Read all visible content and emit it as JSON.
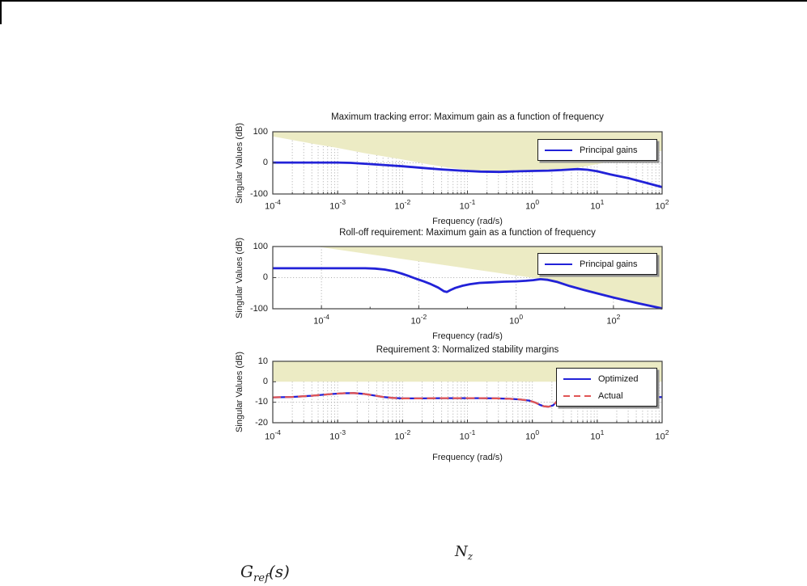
{
  "equations": {
    "nz": {
      "base": "N",
      "sub": "z"
    },
    "gref": {
      "base": "G",
      "sub": "ref",
      "suffix": "(s)"
    }
  },
  "chart_data": [
    {
      "id": "tracking-error",
      "type": "line",
      "title": "Maximum tracking error: Maximum gain as a function of frequency",
      "xlabel": "Frequency (rad/s)",
      "ylabel": "Singular Values (dB)",
      "x_scale": "log",
      "x_range_log10": [
        -4,
        2
      ],
      "y_range": [
        -100,
        100
      ],
      "x_tick_base": "10",
      "x_tick_exps": [
        -4,
        -3,
        -2,
        -1,
        0,
        1,
        2
      ],
      "y_ticks": [
        100,
        0,
        -100
      ],
      "h_gridlines": [
        0
      ],
      "minor_v_grid": true,
      "v_grid_exps": [],
      "legend_position": "upper-right",
      "constraint_color": "#ecebc4",
      "constraint_boundary_above": [
        [
          -4,
          85
        ],
        [
          -3.4,
          62
        ],
        [
          -3,
          48
        ],
        [
          -2.6,
          32
        ],
        [
          -2.2,
          18
        ],
        [
          -1.9,
          7
        ],
        [
          -1.6,
          -5
        ],
        [
          -1.3,
          -15
        ],
        [
          -1,
          -22
        ],
        [
          -0.7,
          -26
        ],
        [
          -0.4,
          -27
        ],
        [
          -0.1,
          -25
        ],
        [
          0.2,
          -23
        ],
        [
          0.45,
          -21
        ],
        [
          0.65,
          -17
        ],
        [
          0.9,
          -8
        ],
        [
          1.2,
          4
        ],
        [
          1.5,
          17
        ],
        [
          1.8,
          29
        ],
        [
          2,
          39
        ]
      ],
      "series": [
        {
          "name": "Principal gains",
          "color": "#2222d8",
          "dash": "solid",
          "width": 2.8,
          "points": [
            [
              -4,
              1
            ],
            [
              -3,
              1
            ],
            [
              -2.8,
              0
            ],
            [
              -2.5,
              -4
            ],
            [
              -2.2,
              -8
            ],
            [
              -2,
              -11
            ],
            [
              -1.7,
              -16
            ],
            [
              -1.4,
              -21
            ],
            [
              -1.1,
              -25
            ],
            [
              -0.8,
              -28
            ],
            [
              -0.5,
              -29
            ],
            [
              -0.2,
              -27
            ],
            [
              0,
              -26
            ],
            [
              0.25,
              -25
            ],
            [
              0.45,
              -23
            ],
            [
              0.6,
              -21
            ],
            [
              0.7,
              -20
            ],
            [
              0.85,
              -22
            ],
            [
              1,
              -27
            ],
            [
              1.2,
              -37
            ],
            [
              1.5,
              -50
            ],
            [
              1.75,
              -64
            ],
            [
              2,
              -78
            ]
          ]
        }
      ],
      "legend": {
        "items": [
          {
            "label": "Principal gains",
            "color": "#2222d8",
            "dash": "solid"
          }
        ]
      }
    },
    {
      "id": "roll-off",
      "type": "line",
      "title": "Roll-off requirement: Maximum gain as a function of frequency",
      "xlabel": "Frequency (rad/s)",
      "ylabel": "Singular Values (dB)",
      "x_scale": "log",
      "x_range_log10": [
        -5,
        3
      ],
      "y_range": [
        -100,
        100
      ],
      "x_tick_base": "10",
      "x_tick_exps": [
        -4,
        -2,
        0,
        2
      ],
      "y_ticks": [
        100,
        0,
        -100
      ],
      "h_gridlines": [
        0
      ],
      "minor_v_grid": false,
      "v_grid_exps": [
        -4,
        -2,
        0,
        2
      ],
      "legend_position": "upper-right",
      "constraint_color": "#ecebc4",
      "constraint_boundary_above": [
        [
          -4.1,
          100
        ],
        [
          0.4,
          -2
        ],
        [
          3,
          -100
        ]
      ],
      "series": [
        {
          "name": "Principal gains",
          "color": "#2222d8",
          "dash": "solid",
          "width": 2.8,
          "points": [
            [
              -5,
              30
            ],
            [
              -3.1,
              30
            ],
            [
              -2.9,
              29
            ],
            [
              -2.7,
              26
            ],
            [
              -2.5,
              20
            ],
            [
              -2.35,
              13
            ],
            [
              -2.2,
              5
            ],
            [
              -2.05,
              -4
            ],
            [
              -1.9,
              -12
            ],
            [
              -1.75,
              -21
            ],
            [
              -1.6,
              -32
            ],
            [
              -1.48,
              -44
            ],
            [
              -1.42,
              -46
            ],
            [
              -1.35,
              -40
            ],
            [
              -1.25,
              -33
            ],
            [
              -1.1,
              -26
            ],
            [
              -0.95,
              -21
            ],
            [
              -0.75,
              -17
            ],
            [
              -0.5,
              -15
            ],
            [
              -0.25,
              -13
            ],
            [
              0,
              -12
            ],
            [
              0.2,
              -10
            ],
            [
              0.35,
              -8
            ],
            [
              0.5,
              -5
            ],
            [
              0.65,
              -7
            ],
            [
              0.85,
              -14
            ],
            [
              1.1,
              -27
            ],
            [
              1.4,
              -40
            ],
            [
              1.7,
              -52
            ],
            [
              2,
              -64
            ],
            [
              2.5,
              -82
            ],
            [
              3,
              -99
            ]
          ]
        }
      ],
      "legend": {
        "items": [
          {
            "label": "Principal gains",
            "color": "#2222d8",
            "dash": "solid"
          }
        ]
      }
    },
    {
      "id": "stability-margins",
      "type": "line",
      "title": "Requirement 3: Normalized stability margins",
      "xlabel": "Frequency (rad/s)",
      "ylabel": "Singular Values (dB)",
      "x_scale": "log",
      "x_range_log10": [
        -4,
        2
      ],
      "y_range": [
        -20,
        10
      ],
      "x_tick_base": "10",
      "x_tick_exps": [
        -4,
        -3,
        -2,
        -1,
        0,
        1,
        2
      ],
      "y_ticks": [
        10,
        0,
        -10,
        -20
      ],
      "h_gridlines": [
        -10
      ],
      "minor_v_grid": true,
      "v_grid_exps": [],
      "legend_position": "upper-right",
      "constraint_color": "#ecebc4",
      "constraint_boundary_above": [
        [
          -4,
          0
        ],
        [
          2,
          0
        ]
      ],
      "series": [
        {
          "name": "Optimized",
          "color": "#2222d8",
          "dash": "solid",
          "width": 2.3,
          "points": [
            [
              -4,
              -7.6
            ],
            [
              -3.7,
              -7.4
            ],
            [
              -3.4,
              -6.8
            ],
            [
              -3.1,
              -6
            ],
            [
              -2.9,
              -5.6
            ],
            [
              -2.75,
              -5.5
            ],
            [
              -2.6,
              -5.9
            ],
            [
              -2.45,
              -6.6
            ],
            [
              -2.3,
              -7.4
            ],
            [
              -2.15,
              -7.9
            ],
            [
              -2,
              -8.1
            ],
            [
              -1.7,
              -8.1
            ],
            [
              -1.4,
              -8
            ],
            [
              -1.1,
              -8
            ],
            [
              -0.8,
              -8
            ],
            [
              -0.55,
              -8.1
            ],
            [
              -0.35,
              -8.3
            ],
            [
              -0.2,
              -8.6
            ],
            [
              -0.05,
              -9.2
            ],
            [
              0.05,
              -10.2
            ],
            [
              0.12,
              -11.3
            ],
            [
              0.18,
              -12
            ],
            [
              0.25,
              -12.2
            ],
            [
              0.32,
              -11.5
            ],
            [
              0.38,
              -9.5
            ],
            [
              0.44,
              -6.5
            ],
            [
              0.5,
              -4.2
            ],
            [
              0.55,
              -3.3
            ],
            [
              0.62,
              -3.1
            ],
            [
              0.75,
              -4.2
            ],
            [
              0.9,
              -5.5
            ],
            [
              1.1,
              -6.6
            ],
            [
              1.4,
              -7.3
            ],
            [
              1.7,
              -7.5
            ],
            [
              2,
              -7.5
            ]
          ]
        },
        {
          "name": "Actual",
          "color": "#e05555",
          "dash": "dashed",
          "width": 2.3,
          "points": [
            [
              -4,
              -7.6
            ],
            [
              -3.7,
              -7.4
            ],
            [
              -3.4,
              -6.8
            ],
            [
              -3.1,
              -6
            ],
            [
              -2.9,
              -5.6
            ],
            [
              -2.75,
              -5.5
            ],
            [
              -2.6,
              -5.9
            ],
            [
              -2.45,
              -6.6
            ],
            [
              -2.3,
              -7.4
            ],
            [
              -2.15,
              -7.9
            ],
            [
              -2,
              -8.1
            ],
            [
              -1.7,
              -8.1
            ],
            [
              -1.4,
              -8
            ],
            [
              -1.1,
              -8
            ],
            [
              -0.8,
              -8
            ],
            [
              -0.55,
              -8.1
            ],
            [
              -0.35,
              -8.3
            ],
            [
              -0.2,
              -8.6
            ],
            [
              -0.05,
              -9.2
            ],
            [
              0.05,
              -10.2
            ],
            [
              0.12,
              -11.3
            ],
            [
              0.18,
              -12
            ],
            [
              0.25,
              -12.2
            ],
            [
              0.32,
              -11.5
            ],
            [
              0.38,
              -9.5
            ],
            [
              0.44,
              -6.5
            ],
            [
              0.5,
              -4.2
            ],
            [
              0.55,
              -3.3
            ],
            [
              0.62,
              -3.1
            ],
            [
              0.75,
              -4.2
            ],
            [
              0.9,
              -5.5
            ],
            [
              1.1,
              -6.6
            ],
            [
              1.4,
              -7.3
            ],
            [
              1.7,
              -7.5
            ],
            [
              2,
              -7.5
            ]
          ]
        }
      ],
      "legend": {
        "items": [
          {
            "label": "Optimized",
            "color": "#2222d8",
            "dash": "solid"
          },
          {
            "label": "Actual",
            "color": "#e05555",
            "dash": "dashed"
          }
        ]
      }
    }
  ]
}
